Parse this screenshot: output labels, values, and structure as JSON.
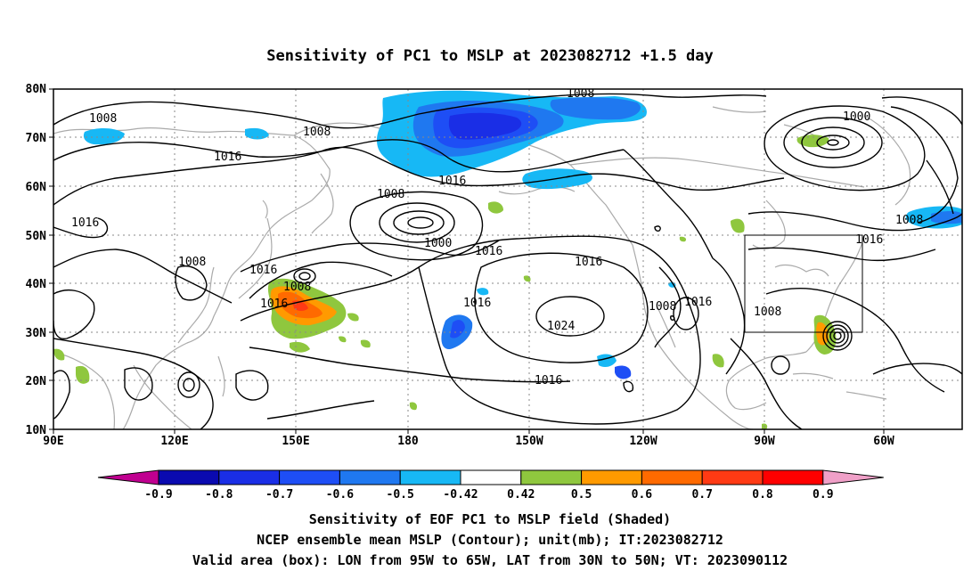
{
  "title": "Sensitivity of PC1 to MSLP at 2023082712 +1.5 day",
  "axes": {
    "lat_labels": [
      "80N",
      "70N",
      "60N",
      "50N",
      "40N",
      "30N",
      "20N",
      "10N"
    ],
    "lon_labels": [
      "90E",
      "120E",
      "150E",
      "180",
      "150W",
      "120W",
      "90W",
      "60W"
    ]
  },
  "contour_labels": [
    {
      "text": "1008"
    },
    {
      "text": "1008"
    },
    {
      "text": "1008"
    },
    {
      "text": "1016"
    },
    {
      "text": "1000"
    },
    {
      "text": "1016"
    },
    {
      "text": "1008"
    },
    {
      "text": "1000"
    },
    {
      "text": "1016"
    },
    {
      "text": "1008"
    },
    {
      "text": "1016"
    },
    {
      "text": "1016"
    },
    {
      "text": "1008"
    },
    {
      "text": "1016"
    },
    {
      "text": "1016"
    },
    {
      "text": "1016"
    },
    {
      "text": "1024"
    },
    {
      "text": "1008"
    },
    {
      "text": "1016"
    },
    {
      "text": "1008"
    },
    {
      "text": "1016"
    },
    {
      "text": "1016"
    },
    {
      "text": "1008"
    }
  ],
  "colorbar": {
    "labels": [
      "-0.9",
      "-0.8",
      "-0.7",
      "-0.6",
      "-0.5",
      "-0.42",
      "0.42",
      "0.5",
      "0.6",
      "0.7",
      "0.8",
      "0.9"
    ],
    "colors": [
      "#c00090",
      "#0a0ab0",
      "#1a2ee6",
      "#1e4ef5",
      "#1f78f0",
      "#17b8f5",
      "#ffffff",
      "#8fc73e",
      "#ff9a00",
      "#ff6a00",
      "#ff3a14",
      "#ff0000",
      "#f0a0c8"
    ]
  },
  "caption": {
    "line1": "Sensitivity of EOF PC1 to MSLP field (Shaded)",
    "line2": "NCEP ensemble mean MSLP (Contour); unit(mb); IT:2023082712",
    "line3": "Valid area (box): LON from 95W to 65W, LAT from 30N to 50N; VT: 2023090112"
  }
}
